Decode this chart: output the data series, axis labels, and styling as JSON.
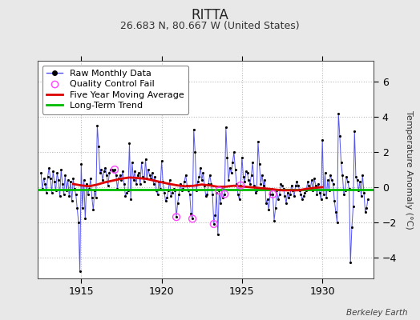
{
  "title": "RITTA",
  "subtitle": "26.683 N, 80.667 W (United States)",
  "ylabel": "Temperature Anomaly (°C)",
  "attribution": "Berkeley Earth",
  "background_color": "#e8e8e8",
  "plot_bg_color": "#ffffff",
  "ylim": [
    -5.2,
    7.2
  ],
  "yticks": [
    -4,
    -2,
    0,
    2,
    4,
    6
  ],
  "year_start": 1912.3,
  "year_end": 1933.2,
  "xticks": [
    1915,
    1920,
    1925,
    1930
  ],
  "raw_data": [
    [
      1912.5,
      0.8
    ],
    [
      1912.583,
      -0.1
    ],
    [
      1912.667,
      0.5
    ],
    [
      1912.75,
      0.2
    ],
    [
      1912.833,
      -0.3
    ],
    [
      1912.917,
      0.6
    ],
    [
      1913.0,
      1.1
    ],
    [
      1913.083,
      0.5
    ],
    [
      1913.167,
      -0.3
    ],
    [
      1913.25,
      0.9
    ],
    [
      1913.333,
      0.3
    ],
    [
      1913.417,
      -0.2
    ],
    [
      1913.5,
      0.8
    ],
    [
      1913.583,
      0.4
    ],
    [
      1913.667,
      -0.5
    ],
    [
      1913.75,
      1.0
    ],
    [
      1913.833,
      0.2
    ],
    [
      1913.917,
      -0.4
    ],
    [
      1914.0,
      0.7
    ],
    [
      1914.083,
      -0.2
    ],
    [
      1914.167,
      0.4
    ],
    [
      1914.25,
      -0.5
    ],
    [
      1914.333,
      0.3
    ],
    [
      1914.417,
      -0.8
    ],
    [
      1914.5,
      0.5
    ],
    [
      1914.583,
      -0.1
    ],
    [
      1914.667,
      -0.4
    ],
    [
      1914.75,
      -1.2
    ],
    [
      1914.833,
      -2.0
    ],
    [
      1914.917,
      -4.8
    ],
    [
      1915.0,
      1.3
    ],
    [
      1915.083,
      -1.2
    ],
    [
      1915.167,
      0.4
    ],
    [
      1915.25,
      -1.8
    ],
    [
      1915.333,
      0.2
    ],
    [
      1915.417,
      -0.4
    ],
    [
      1915.5,
      -0.1
    ],
    [
      1915.583,
      0.5
    ],
    [
      1915.667,
      -0.6
    ],
    [
      1915.75,
      -1.3
    ],
    [
      1915.833,
      -0.2
    ],
    [
      1915.917,
      -0.6
    ],
    [
      1916.0,
      3.5
    ],
    [
      1916.083,
      2.3
    ],
    [
      1916.167,
      0.8
    ],
    [
      1916.25,
      1.0
    ],
    [
      1916.333,
      0.4
    ],
    [
      1916.417,
      0.9
    ],
    [
      1916.5,
      1.1
    ],
    [
      1916.583,
      0.7
    ],
    [
      1916.667,
      0.1
    ],
    [
      1916.75,
      0.8
    ],
    [
      1916.833,
      1.0
    ],
    [
      1916.917,
      1.0
    ],
    [
      1917.0,
      0.9
    ],
    [
      1917.083,
      1.0
    ],
    [
      1917.167,
      0.7
    ],
    [
      1917.25,
      -0.1
    ],
    [
      1917.333,
      0.5
    ],
    [
      1917.417,
      0.7
    ],
    [
      1917.5,
      0.4
    ],
    [
      1917.583,
      0.9
    ],
    [
      1917.667,
      0.2
    ],
    [
      1917.75,
      -0.5
    ],
    [
      1917.833,
      -0.3
    ],
    [
      1917.917,
      -0.2
    ],
    [
      1918.0,
      2.5
    ],
    [
      1918.083,
      -0.7
    ],
    [
      1918.167,
      1.4
    ],
    [
      1918.25,
      0.4
    ],
    [
      1918.333,
      0.9
    ],
    [
      1918.417,
      0.2
    ],
    [
      1918.5,
      0.7
    ],
    [
      1918.583,
      0.8
    ],
    [
      1918.667,
      0.2
    ],
    [
      1918.75,
      1.4
    ],
    [
      1918.833,
      0.6
    ],
    [
      1918.917,
      0.3
    ],
    [
      1919.0,
      1.6
    ],
    [
      1919.083,
      0.5
    ],
    [
      1919.167,
      1.0
    ],
    [
      1919.25,
      0.7
    ],
    [
      1919.333,
      0.5
    ],
    [
      1919.417,
      0.8
    ],
    [
      1919.5,
      0.2
    ],
    [
      1919.583,
      0.6
    ],
    [
      1919.667,
      -0.2
    ],
    [
      1919.75,
      -0.4
    ],
    [
      1919.833,
      0.3
    ],
    [
      1919.917,
      -0.1
    ],
    [
      1920.0,
      1.5
    ],
    [
      1920.083,
      0.3
    ],
    [
      1920.167,
      -0.3
    ],
    [
      1920.25,
      -0.8
    ],
    [
      1920.333,
      -0.6
    ],
    [
      1920.417,
      -0.2
    ],
    [
      1920.5,
      0.4
    ],
    [
      1920.583,
      -0.5
    ],
    [
      1920.667,
      -0.3
    ],
    [
      1920.75,
      -0.1
    ],
    [
      1920.833,
      -0.2
    ],
    [
      1920.917,
      -1.7
    ],
    [
      1921.0,
      -0.9
    ],
    [
      1921.083,
      -0.4
    ],
    [
      1921.167,
      0.2
    ],
    [
      1921.25,
      -0.2
    ],
    [
      1921.333,
      -0.1
    ],
    [
      1921.417,
      0.3
    ],
    [
      1921.5,
      0.7
    ],
    [
      1921.583,
      0.1
    ],
    [
      1921.667,
      -0.2
    ],
    [
      1921.75,
      -0.4
    ],
    [
      1921.833,
      -1.5
    ],
    [
      1921.917,
      -1.8
    ],
    [
      1922.0,
      3.3
    ],
    [
      1922.083,
      2.0
    ],
    [
      1922.167,
      -0.2
    ],
    [
      1922.25,
      0.3
    ],
    [
      1922.333,
      0.6
    ],
    [
      1922.417,
      1.1
    ],
    [
      1922.5,
      0.4
    ],
    [
      1922.583,
      0.8
    ],
    [
      1922.667,
      0.1
    ],
    [
      1922.75,
      -0.5
    ],
    [
      1922.833,
      -0.4
    ],
    [
      1922.917,
      0.2
    ],
    [
      1923.0,
      0.7
    ],
    [
      1923.083,
      0.2
    ],
    [
      1923.167,
      -0.4
    ],
    [
      1923.25,
      -2.1
    ],
    [
      1923.333,
      -1.6
    ],
    [
      1923.417,
      -0.3
    ],
    [
      1923.5,
      -2.7
    ],
    [
      1923.583,
      -0.2
    ],
    [
      1923.667,
      -0.9
    ],
    [
      1923.75,
      -0.1
    ],
    [
      1923.833,
      -0.6
    ],
    [
      1923.917,
      -0.4
    ],
    [
      1924.0,
      3.4
    ],
    [
      1924.083,
      1.7
    ],
    [
      1924.167,
      0.4
    ],
    [
      1924.25,
      1.1
    ],
    [
      1924.333,
      0.8
    ],
    [
      1924.417,
      1.4
    ],
    [
      1924.5,
      2.0
    ],
    [
      1924.583,
      1.0
    ],
    [
      1924.667,
      0.2
    ],
    [
      1924.75,
      -0.4
    ],
    [
      1924.833,
      -0.7
    ],
    [
      1924.917,
      0.1
    ],
    [
      1925.0,
      1.7
    ],
    [
      1925.083,
      0.6
    ],
    [
      1925.167,
      0.3
    ],
    [
      1925.25,
      0.9
    ],
    [
      1925.333,
      0.8
    ],
    [
      1925.417,
      0.4
    ],
    [
      1925.5,
      0.2
    ],
    [
      1925.583,
      0.7
    ],
    [
      1925.667,
      1.4
    ],
    [
      1925.75,
      0.1
    ],
    [
      1925.833,
      -0.3
    ],
    [
      1925.917,
      -0.2
    ],
    [
      1926.0,
      2.6
    ],
    [
      1926.083,
      1.3
    ],
    [
      1926.167,
      0.2
    ],
    [
      1926.25,
      0.7
    ],
    [
      1926.333,
      0.1
    ],
    [
      1926.417,
      0.4
    ],
    [
      1926.5,
      -0.9
    ],
    [
      1926.583,
      -0.7
    ],
    [
      1926.667,
      -1.3
    ],
    [
      1926.75,
      -0.4
    ],
    [
      1926.833,
      -0.1
    ],
    [
      1926.917,
      -0.4
    ],
    [
      1927.0,
      -1.9
    ],
    [
      1927.083,
      -1.2
    ],
    [
      1927.167,
      -0.2
    ],
    [
      1927.25,
      -0.7
    ],
    [
      1927.333,
      -0.4
    ],
    [
      1927.417,
      0.2
    ],
    [
      1927.5,
      0.1
    ],
    [
      1927.583,
      -0.1
    ],
    [
      1927.667,
      -0.5
    ],
    [
      1927.75,
      -0.9
    ],
    [
      1927.833,
      -0.3
    ],
    [
      1927.917,
      -0.6
    ],
    [
      1928.0,
      -0.4
    ],
    [
      1928.083,
      0.1
    ],
    [
      1928.167,
      -0.2
    ],
    [
      1928.25,
      -0.5
    ],
    [
      1928.333,
      0.1
    ],
    [
      1928.417,
      0.3
    ],
    [
      1928.5,
      0.1
    ],
    [
      1928.583,
      -0.2
    ],
    [
      1928.667,
      -0.4
    ],
    [
      1928.75,
      -0.7
    ],
    [
      1928.833,
      -0.5
    ],
    [
      1928.917,
      -0.3
    ],
    [
      1929.0,
      -0.2
    ],
    [
      1929.083,
      0.3
    ],
    [
      1929.167,
      0.1
    ],
    [
      1929.25,
      -0.1
    ],
    [
      1929.333,
      0.4
    ],
    [
      1929.417,
      -0.2
    ],
    [
      1929.5,
      0.5
    ],
    [
      1929.583,
      0.1
    ],
    [
      1929.667,
      -0.4
    ],
    [
      1929.75,
      0.2
    ],
    [
      1929.833,
      -0.3
    ],
    [
      1929.917,
      -0.7
    ],
    [
      1930.0,
      2.7
    ],
    [
      1930.083,
      -0.4
    ],
    [
      1930.167,
      0.8
    ],
    [
      1930.25,
      -0.6
    ],
    [
      1930.333,
      0.4
    ],
    [
      1930.417,
      -0.2
    ],
    [
      1930.5,
      0.7
    ],
    [
      1930.583,
      0.4
    ],
    [
      1930.667,
      0.2
    ],
    [
      1930.75,
      -0.8
    ],
    [
      1930.833,
      -1.4
    ],
    [
      1930.917,
      -2.0
    ],
    [
      1931.0,
      4.2
    ],
    [
      1931.083,
      2.9
    ],
    [
      1931.167,
      1.4
    ],
    [
      1931.25,
      0.7
    ],
    [
      1931.333,
      -0.4
    ],
    [
      1931.417,
      -0.2
    ],
    [
      1931.5,
      0.6
    ],
    [
      1931.583,
      0.3
    ],
    [
      1931.667,
      -0.1
    ],
    [
      1931.75,
      -4.3
    ],
    [
      1931.833,
      -2.3
    ],
    [
      1931.917,
      -1.1
    ],
    [
      1932.0,
      3.2
    ],
    [
      1932.083,
      0.6
    ],
    [
      1932.167,
      0.4
    ],
    [
      1932.25,
      -0.2
    ],
    [
      1932.333,
      0.3
    ],
    [
      1932.417,
      -0.5
    ],
    [
      1932.5,
      0.7
    ],
    [
      1932.583,
      -0.3
    ],
    [
      1932.667,
      -1.4
    ],
    [
      1932.75,
      -1.2
    ],
    [
      1932.833,
      -0.7
    ]
  ],
  "qc_fail_points": [
    [
      1917.083,
      1.0
    ],
    [
      1920.917,
      -1.7
    ],
    [
      1921.917,
      -1.8
    ],
    [
      1923.25,
      -2.1
    ],
    [
      1923.583,
      -0.2
    ],
    [
      1923.917,
      -0.4
    ],
    [
      1924.917,
      0.1
    ],
    [
      1926.917,
      -0.4
    ]
  ],
  "moving_avg": [
    [
      1914.5,
      0.18
    ],
    [
      1915.0,
      0.1
    ],
    [
      1915.5,
      0.05
    ],
    [
      1916.0,
      0.15
    ],
    [
      1916.5,
      0.28
    ],
    [
      1917.0,
      0.38
    ],
    [
      1917.5,
      0.48
    ],
    [
      1918.0,
      0.55
    ],
    [
      1918.5,
      0.52
    ],
    [
      1919.0,
      0.48
    ],
    [
      1919.5,
      0.38
    ],
    [
      1920.0,
      0.28
    ],
    [
      1920.5,
      0.18
    ],
    [
      1921.0,
      0.1
    ],
    [
      1921.5,
      0.05
    ],
    [
      1922.0,
      0.08
    ],
    [
      1922.5,
      0.15
    ],
    [
      1923.0,
      0.1
    ],
    [
      1923.5,
      0.02
    ],
    [
      1924.0,
      0.03
    ],
    [
      1924.5,
      0.08
    ],
    [
      1925.0,
      0.04
    ],
    [
      1925.5,
      0.0
    ],
    [
      1926.0,
      -0.04
    ],
    [
      1926.5,
      -0.08
    ],
    [
      1927.0,
      -0.13
    ],
    [
      1927.5,
      -0.18
    ],
    [
      1928.0,
      -0.18
    ],
    [
      1928.5,
      -0.18
    ],
    [
      1929.0,
      -0.1
    ],
    [
      1929.5,
      -0.04
    ],
    [
      1930.0,
      0.0
    ]
  ],
  "long_term_trend_y": -0.15,
  "raw_line_color": "#5555ee",
  "raw_dot_color": "#000000",
  "qc_color": "#ff44ff",
  "moving_avg_color": "#dd0000",
  "trend_color": "#00bb00",
  "grid_color": "#bbbbbb",
  "title_fontsize": 12,
  "subtitle_fontsize": 9,
  "ylabel_fontsize": 8,
  "tick_fontsize": 9,
  "legend_fontsize": 8
}
